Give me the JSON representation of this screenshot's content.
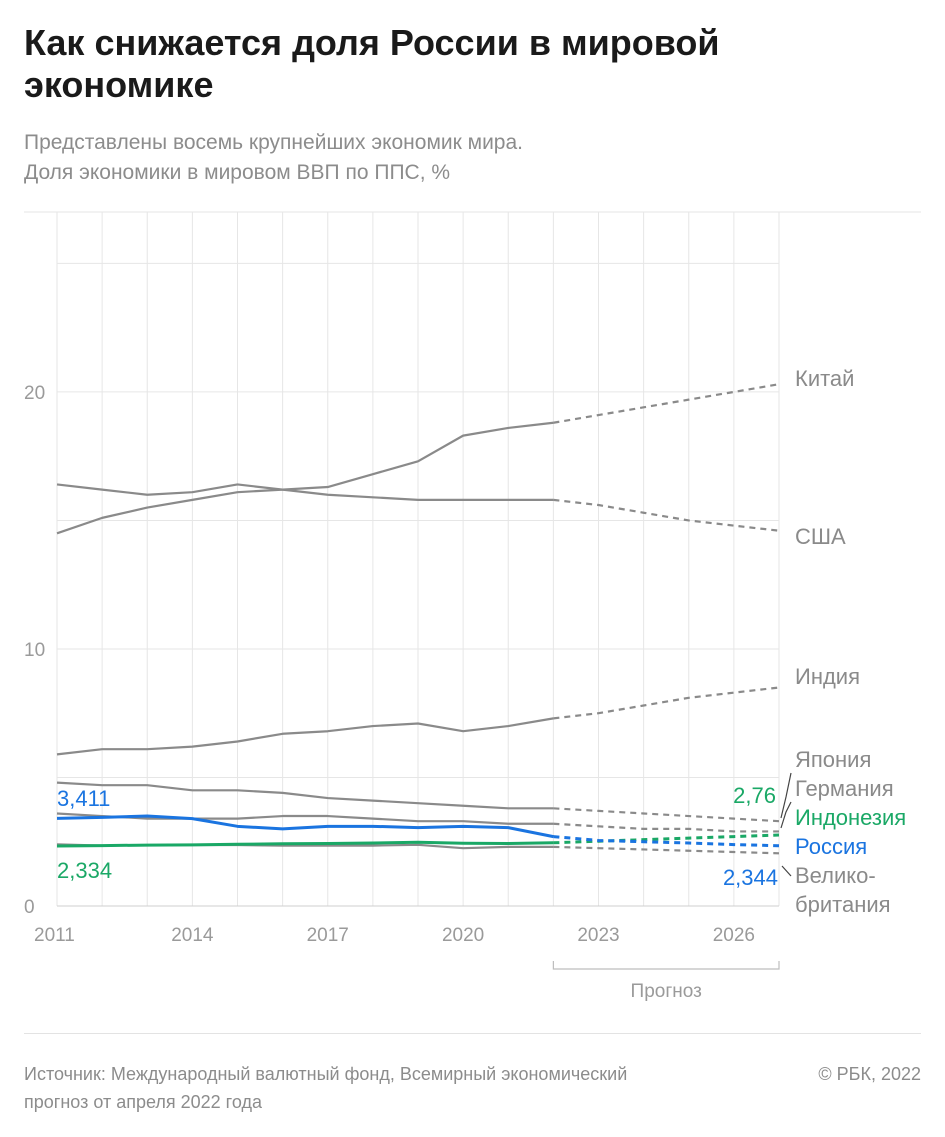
{
  "header": {
    "title": "Как снижается доля России в мировой экономике",
    "subtitle_lines": [
      "Представлены восемь крупнейших экономик мира.",
      "Доля экономики в мировом ВВП по ППС, %"
    ]
  },
  "footer": {
    "source_lines": [
      "Источник: Международный валютный фонд, Всемирный экономический",
      "прогноз от апреля 2022 года"
    ],
    "copyright": "© РБК, 2022"
  },
  "chart_data": {
    "type": "line",
    "x": [
      2011,
      2012,
      2013,
      2014,
      2015,
      2016,
      2017,
      2018,
      2019,
      2020,
      2021,
      2022,
      2023,
      2024,
      2025,
      2026,
      2027
    ],
    "forecast_from": 2022,
    "xlim": [
      2011,
      2027
    ],
    "ylim": [
      0,
      27
    ],
    "x_ticks": [
      2011,
      2014,
      2017,
      2020,
      2023,
      2026
    ],
    "x_tick_labels": [
      "2011",
      "2014",
      "2017",
      "2020",
      "2023",
      "2026"
    ],
    "y_ticks": [
      0,
      10,
      20
    ],
    "y_tick_labels": [
      "0",
      "10",
      "20"
    ],
    "forecast_label": "Прогноз",
    "grid": true,
    "colors": {
      "default": "#8a8a8a",
      "russia": "#1a74e0",
      "indonesia": "#1aa866",
      "grid": "#e6e6e6"
    },
    "series": [
      {
        "key": "china",
        "name": "Китай",
        "color": "#8a8a8a",
        "values": [
          14.5,
          15.1,
          15.5,
          15.8,
          16.1,
          16.2,
          16.3,
          16.8,
          17.3,
          18.3,
          18.6,
          18.8,
          19.1,
          19.4,
          19.7,
          20.0,
          20.3
        ]
      },
      {
        "key": "usa",
        "name": "США",
        "color": "#8a8a8a",
        "values": [
          16.4,
          16.2,
          16.0,
          16.1,
          16.4,
          16.2,
          16.0,
          15.9,
          15.8,
          15.8,
          15.8,
          15.8,
          15.6,
          15.3,
          15.0,
          14.8,
          14.6
        ]
      },
      {
        "key": "india",
        "name": "Индия",
        "color": "#8a8a8a",
        "values": [
          5.9,
          6.1,
          6.1,
          6.2,
          6.4,
          6.7,
          6.8,
          7.0,
          7.1,
          6.8,
          7.0,
          7.3,
          7.5,
          7.8,
          8.1,
          8.3,
          8.5
        ]
      },
      {
        "key": "japan",
        "name": "Япония",
        "color": "#8a8a8a",
        "values": [
          4.8,
          4.7,
          4.7,
          4.5,
          4.5,
          4.4,
          4.2,
          4.1,
          4.0,
          3.9,
          3.8,
          3.8,
          3.7,
          3.6,
          3.5,
          3.4,
          3.3
        ]
      },
      {
        "key": "germany",
        "name": "Германия",
        "color": "#8a8a8a",
        "values": [
          3.6,
          3.5,
          3.4,
          3.4,
          3.4,
          3.5,
          3.5,
          3.4,
          3.3,
          3.3,
          3.2,
          3.2,
          3.1,
          3.0,
          3.0,
          2.9,
          2.9
        ]
      },
      {
        "key": "indonesia",
        "name": "Индонезия",
        "color": "#1aa866",
        "values": [
          2.334,
          2.35,
          2.37,
          2.38,
          2.4,
          2.42,
          2.43,
          2.45,
          2.48,
          2.44,
          2.43,
          2.46,
          2.52,
          2.58,
          2.64,
          2.7,
          2.76
        ],
        "start_label": "2,334",
        "end_label": "2,76"
      },
      {
        "key": "russia",
        "name": "Россия",
        "color": "#1a74e0",
        "values": [
          3.411,
          3.45,
          3.5,
          3.4,
          3.1,
          3.0,
          3.1,
          3.1,
          3.05,
          3.1,
          3.05,
          2.7,
          2.55,
          2.5,
          2.45,
          2.39,
          2.344
        ],
        "start_label": "3,411",
        "end_label": "2,344"
      },
      {
        "key": "uk",
        "name": "Велико-британия",
        "name_lines": [
          "Велико-",
          "британия"
        ],
        "color": "#8a8a8a",
        "values": [
          2.4,
          2.35,
          2.37,
          2.37,
          2.37,
          2.35,
          2.35,
          2.35,
          2.38,
          2.25,
          2.3,
          2.3,
          2.25,
          2.2,
          2.15,
          2.1,
          2.05
        ]
      }
    ]
  }
}
